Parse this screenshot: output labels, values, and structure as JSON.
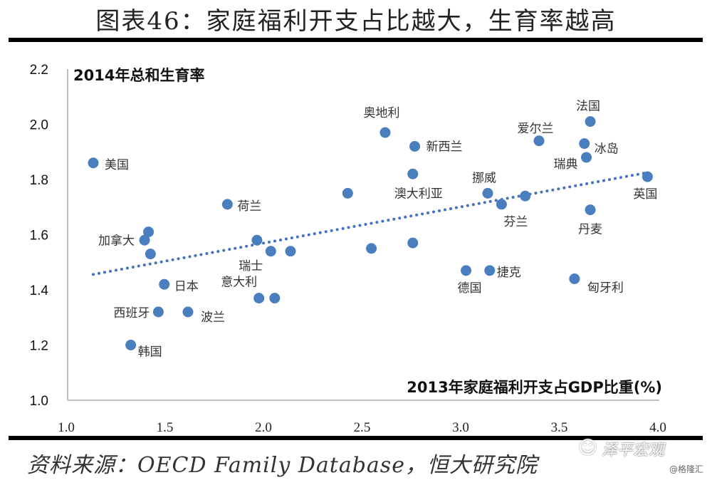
{
  "header": {
    "title": "图表46：家庭福利开支占比越大，生育率越高"
  },
  "footer": {
    "source": "资料来源：OECD Family Database，恒大研究院",
    "watermark": "泽平宏观",
    "watermark_icon": "wechat-icon",
    "credit": "@格隆汇"
  },
  "colors": {
    "point": "#4a7ebf",
    "trend": "#4472c4",
    "axis": "#bfbfbf"
  },
  "chart_data": {
    "type": "scatter",
    "title": "图表46：家庭福利开支占比越大，生育率越高",
    "xlabel": "2013年家庭福利开支占GDP比重(%)",
    "ylabel": "2014年总和生育率",
    "xlim": [
      1.0,
      4.0
    ],
    "ylim": [
      1.0,
      2.2
    ],
    "xticks": [
      "1.0",
      "1.5",
      "2.0",
      "2.5",
      "3.0",
      "3.5",
      "4.0"
    ],
    "yticks": [
      "1.0",
      "1.2",
      "1.4",
      "1.6",
      "1.8",
      "2.0",
      "2.2"
    ],
    "grid": false,
    "legend": "none",
    "points": [
      {
        "label": "美国",
        "x": 1.13,
        "y": 1.86
      },
      {
        "label": "",
        "x": 1.41,
        "y": 1.61
      },
      {
        "label": "加拿大",
        "x": 1.39,
        "y": 1.58
      },
      {
        "label": "",
        "x": 1.42,
        "y": 1.53
      },
      {
        "label": "日本",
        "x": 1.49,
        "y": 1.42
      },
      {
        "label": "西班牙",
        "x": 1.46,
        "y": 1.32
      },
      {
        "label": "波兰",
        "x": 1.61,
        "y": 1.32
      },
      {
        "label": "韩国",
        "x": 1.32,
        "y": 1.2
      },
      {
        "label": "荷兰",
        "x": 1.81,
        "y": 1.71
      },
      {
        "label": "",
        "x": 1.96,
        "y": 1.58
      },
      {
        "label": "瑞士",
        "x": 2.03,
        "y": 1.54
      },
      {
        "label": "",
        "x": 2.13,
        "y": 1.54
      },
      {
        "label": "意大利",
        "x": 1.97,
        "y": 1.37
      },
      {
        "label": "",
        "x": 2.05,
        "y": 1.37
      },
      {
        "label": "",
        "x": 2.42,
        "y": 1.75
      },
      {
        "label": "",
        "x": 2.54,
        "y": 1.55
      },
      {
        "label": "奥地利",
        "x": 2.61,
        "y": 1.97
      },
      {
        "label": "新西兰",
        "x": 2.76,
        "y": 1.92
      },
      {
        "label": "澳大利亚",
        "x": 2.75,
        "y": 1.82
      },
      {
        "label": "",
        "x": 2.75,
        "y": 1.57
      },
      {
        "label": "德国",
        "x": 3.02,
        "y": 1.47
      },
      {
        "label": "捷克",
        "x": 3.14,
        "y": 1.47
      },
      {
        "label": "挪威",
        "x": 3.13,
        "y": 1.75
      },
      {
        "label": "芬兰",
        "x": 3.2,
        "y": 1.71
      },
      {
        "label": "",
        "x": 3.32,
        "y": 1.74
      },
      {
        "label": "爱尔兰",
        "x": 3.39,
        "y": 1.94
      },
      {
        "label": "匈牙利",
        "x": 3.57,
        "y": 1.44
      },
      {
        "label": "冰岛",
        "x": 3.62,
        "y": 1.93
      },
      {
        "label": "瑞典",
        "x": 3.63,
        "y": 1.88
      },
      {
        "label": "法国",
        "x": 3.65,
        "y": 2.01
      },
      {
        "label": "丹麦",
        "x": 3.65,
        "y": 1.69
      },
      {
        "label": "英国",
        "x": 3.94,
        "y": 1.81
      }
    ],
    "trendline": {
      "type": "linear",
      "x": [
        1.13,
        3.94
      ],
      "y": [
        1.456,
        1.825
      ]
    }
  }
}
